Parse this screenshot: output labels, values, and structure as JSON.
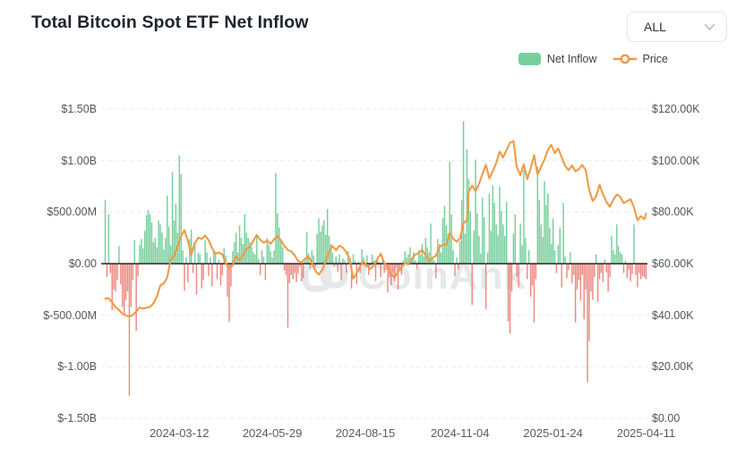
{
  "header": {
    "title": "Total Bitcoin Spot ETF Net Inflow",
    "range_selector": {
      "value": "ALL"
    }
  },
  "chart_data": {
    "type": "combo",
    "title": "Total Bitcoin Spot ETF Net Inflow",
    "watermark": "CoinAnk",
    "grid": true,
    "legend_position": "top-right",
    "x_axis": {
      "tick_labels": [
        "2024-03-12",
        "2024-05-29",
        "2024-08-15",
        "2024-11-04",
        "2025-01-24",
        "2025-04-11"
      ],
      "tick_day_indices": [
        43,
        97,
        151,
        206,
        260,
        314
      ],
      "num_days": 315
    },
    "y_axis_left": {
      "tick_labels": [
        "$1.50B",
        "$1.00B",
        "$500.00M",
        "$0.00",
        "$-500.00M",
        "$-1.00B",
        "$-1.50B"
      ],
      "range_millions": [
        -1500,
        1500
      ]
    },
    "y_axis_right": {
      "tick_labels": [
        "$120.00K",
        "$100.00K",
        "$80.00K",
        "$60.00K",
        "$40.00K",
        "$20.00K",
        "$0.00"
      ],
      "range_thousands": [
        0,
        120
      ]
    },
    "series": [
      {
        "name": "Net Inflow",
        "type": "bar",
        "unit": "USD millions",
        "color_positive": "#6fcb96",
        "color_negative": "#eb8379",
        "values_millions_usd": [
          620,
          -130,
          480,
          -90,
          -450,
          -250,
          -270,
          -160,
          170,
          -200,
          -420,
          -500,
          -350,
          -270,
          -1280,
          -420,
          -160,
          230,
          -650,
          -120,
          180,
          240,
          150,
          320,
          470,
          520,
          480,
          400,
          210,
          250,
          160,
          420,
          380,
          300,
          140,
          250,
          660,
          360,
          180,
          890,
          420,
          580,
          300,
          1050,
          870,
          130,
          -260,
          60,
          -180,
          240,
          330,
          -90,
          180,
          -300,
          110,
          90,
          -240,
          -160,
          230,
          110,
          -120,
          60,
          -220,
          130,
          90,
          -150,
          40,
          -210,
          -110,
          150,
          80,
          -320,
          -560,
          -220,
          120,
          210,
          300,
          110,
          370,
          250,
          190,
          480,
          300,
          250,
          210,
          160,
          110,
          90,
          260,
          45,
          -110,
          130,
          70,
          -160,
          250,
          180,
          120,
          60,
          130,
          880,
          490,
          350,
          220,
          160,
          -65,
          -110,
          -620,
          -190,
          -110,
          -150,
          -90,
          -180,
          -100,
          -30,
          -170,
          -140,
          30,
          310,
          100,
          -50,
          130,
          80,
          -30,
          290,
          440,
          310,
          370,
          420,
          280,
          530,
          270,
          190,
          110,
          -30,
          70,
          -80,
          90,
          -160,
          50,
          30,
          -90,
          120,
          60,
          -240,
          90,
          30,
          -200,
          20,
          -90,
          140,
          60,
          -30,
          80,
          -110,
          -20,
          90,
          30,
          -170,
          60,
          20,
          -130,
          40,
          -90,
          -60,
          -280,
          -130,
          -210,
          -90,
          -170,
          -40,
          -250,
          -60,
          -110,
          30,
          120,
          60,
          90,
          160,
          40,
          110,
          30,
          -50,
          130,
          90,
          190,
          70,
          250,
          160,
          110,
          390,
          60,
          30,
          -140,
          240,
          190,
          110,
          440,
          560,
          370,
          290,
          990,
          480,
          130,
          -120,
          60,
          -55,
          220,
          620,
          1380,
          290,
          1110,
          820,
          510,
          -400,
          320,
          1010,
          490,
          270,
          100,
          640,
          450,
          -440,
          110,
          680,
          320,
          760,
          590,
          380,
          280,
          750,
          510,
          380,
          270,
          600,
          -560,
          -680,
          -270,
          290,
          480,
          -125,
          -230,
          390,
          180,
          910,
          250,
          -150,
          130,
          -320,
          -210,
          -570,
          -150,
          940,
          620,
          380,
          260,
          800,
          570,
          680,
          350,
          190,
          440,
          130,
          -90,
          180,
          350,
          -230,
          590,
          70,
          -140,
          -60,
          110,
          -190,
          -110,
          -570,
          -250,
          -160,
          -360,
          -110,
          -540,
          -250,
          -1150,
          -750,
          -270,
          -350,
          -130,
          90,
          -370,
          -150,
          -90,
          -180,
          40,
          -85,
          -270,
          -130,
          270,
          130,
          90,
          380,
          170,
          110,
          90,
          -90,
          30,
          -140,
          -60,
          -170,
          -100,
          380,
          -110,
          -230,
          -90,
          -150,
          -120,
          -135,
          -150
        ]
      },
      {
        "name": "Price",
        "type": "line",
        "unit": "USD thousands",
        "color": "#f09a46",
        "points_day_priceK": [
          [
            0,
            46.4
          ],
          [
            2,
            46.6
          ],
          [
            4,
            45.0
          ],
          [
            6,
            43.1
          ],
          [
            8,
            42.0
          ],
          [
            10,
            40.6
          ],
          [
            12,
            39.9
          ],
          [
            14,
            39.5
          ],
          [
            16,
            40.1
          ],
          [
            18,
            41.4
          ],
          [
            20,
            43.0
          ],
          [
            22,
            42.6
          ],
          [
            24,
            42.9
          ],
          [
            26,
            43.2
          ],
          [
            28,
            44.6
          ],
          [
            30,
            47.2
          ],
          [
            32,
            51.6
          ],
          [
            34,
            52.3
          ],
          [
            36,
            54.6
          ],
          [
            38,
            61.5
          ],
          [
            40,
            63.0
          ],
          [
            42,
            66.8
          ],
          [
            44,
            70.6
          ],
          [
            46,
            73.0
          ],
          [
            48,
            68.9
          ],
          [
            50,
            63.5
          ],
          [
            52,
            67.9
          ],
          [
            54,
            70.1
          ],
          [
            56,
            69.6
          ],
          [
            58,
            70.9
          ],
          [
            60,
            69.2
          ],
          [
            62,
            66.1
          ],
          [
            64,
            63.9
          ],
          [
            66,
            64.3
          ],
          [
            68,
            63.6
          ],
          [
            70,
            60.2
          ],
          [
            72,
            58.4
          ],
          [
            74,
            59.3
          ],
          [
            76,
            62.8
          ],
          [
            78,
            61.4
          ],
          [
            80,
            63.3
          ],
          [
            82,
            65.8
          ],
          [
            84,
            66.4
          ],
          [
            86,
            68.9
          ],
          [
            88,
            71.1
          ],
          [
            90,
            69.3
          ],
          [
            92,
            68.2
          ],
          [
            94,
            68.9
          ],
          [
            96,
            67.7
          ],
          [
            98,
            69.4
          ],
          [
            100,
            70.8
          ],
          [
            102,
            69.1
          ],
          [
            104,
            66.9
          ],
          [
            106,
            65.3
          ],
          [
            108,
            64.8
          ],
          [
            110,
            63.2
          ],
          [
            112,
            61.1
          ],
          [
            114,
            60.4
          ],
          [
            116,
            61.9
          ],
          [
            118,
            62.8
          ],
          [
            120,
            60.3
          ],
          [
            122,
            57.2
          ],
          [
            124,
            55.8
          ],
          [
            126,
            57.6
          ],
          [
            128,
            60.9
          ],
          [
            130,
            64.6
          ],
          [
            132,
            66.8
          ],
          [
            134,
            65.2
          ],
          [
            136,
            67.0
          ],
          [
            138,
            66.2
          ],
          [
            140,
            64.4
          ],
          [
            142,
            61.6
          ],
          [
            144,
            54.2
          ],
          [
            146,
            56.3
          ],
          [
            148,
            58.9
          ],
          [
            150,
            60.9
          ],
          [
            152,
            59.2
          ],
          [
            154,
            58.0
          ],
          [
            156,
            59.3
          ],
          [
            158,
            61.8
          ],
          [
            160,
            63.9
          ],
          [
            162,
            60.2
          ],
          [
            164,
            59.1
          ],
          [
            166,
            56.2
          ],
          [
            168,
            54.6
          ],
          [
            170,
            56.9
          ],
          [
            172,
            58.4
          ],
          [
            174,
            60.3
          ],
          [
            176,
            59.7
          ],
          [
            178,
            61.9
          ],
          [
            180,
            63.5
          ],
          [
            182,
            64.1
          ],
          [
            184,
            65.4
          ],
          [
            186,
            63.2
          ],
          [
            188,
            61.0
          ],
          [
            190,
            62.3
          ],
          [
            192,
            63.1
          ],
          [
            194,
            66.3
          ],
          [
            196,
            67.5
          ],
          [
            198,
            67.2
          ],
          [
            200,
            71.9
          ],
          [
            202,
            69.7
          ],
          [
            204,
            68.5
          ],
          [
            206,
            69.8
          ],
          [
            208,
            75.6
          ],
          [
            210,
            76.8
          ],
          [
            211,
            88.0
          ],
          [
            213,
            90.3
          ],
          [
            215,
            88.1
          ],
          [
            217,
            91.0
          ],
          [
            219,
            94.8
          ],
          [
            221,
            98.4
          ],
          [
            223,
            93.1
          ],
          [
            225,
            95.9
          ],
          [
            227,
            99.0
          ],
          [
            229,
            103.5
          ],
          [
            231,
            101.2
          ],
          [
            233,
            104.1
          ],
          [
            235,
            106.9
          ],
          [
            237,
            107.6
          ],
          [
            239,
            97.5
          ],
          [
            241,
            94.3
          ],
          [
            243,
            98.6
          ],
          [
            245,
            92.8
          ],
          [
            247,
            96.9
          ],
          [
            249,
            102.1
          ],
          [
            251,
            94.6
          ],
          [
            253,
            97.5
          ],
          [
            255,
            100.4
          ],
          [
            257,
            104.2
          ],
          [
            259,
            106.1
          ],
          [
            261,
            102.9
          ],
          [
            263,
            104.7
          ],
          [
            265,
            101.4
          ],
          [
            267,
            97.9
          ],
          [
            269,
            96.3
          ],
          [
            271,
            98.1
          ],
          [
            273,
            95.8
          ],
          [
            275,
            96.7
          ],
          [
            277,
            98.3
          ],
          [
            279,
            96.2
          ],
          [
            281,
            88.6
          ],
          [
            283,
            84.3
          ],
          [
            285,
            86.1
          ],
          [
            287,
            90.6
          ],
          [
            289,
            86.9
          ],
          [
            291,
            83.9
          ],
          [
            293,
            82.1
          ],
          [
            295,
            84.9
          ],
          [
            297,
            86.8
          ],
          [
            299,
            86.0
          ],
          [
            301,
            83.5
          ],
          [
            303,
            84.2
          ],
          [
            305,
            85.0
          ],
          [
            307,
            81.9
          ],
          [
            309,
            76.9
          ],
          [
            311,
            78.4
          ],
          [
            313,
            77.2
          ],
          [
            314,
            79.4
          ]
        ]
      }
    ]
  }
}
